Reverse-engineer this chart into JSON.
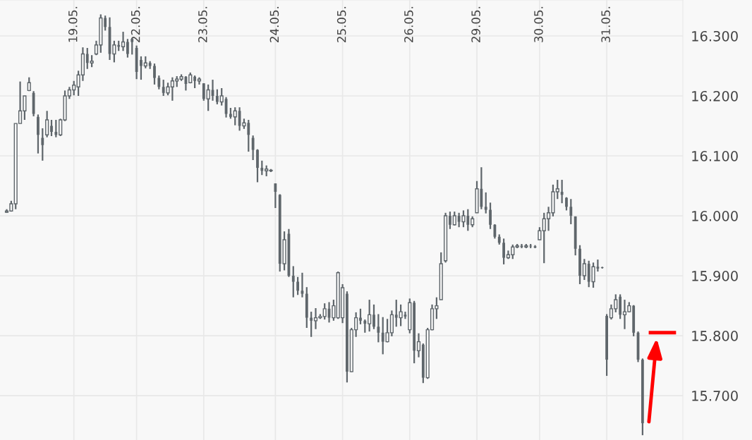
{
  "chart_data": {
    "type": "candlestick",
    "categories": [
      null,
      null,
      null,
      null,
      null,
      null,
      null,
      null,
      null,
      null,
      null,
      null,
      null,
      null,
      null,
      "19.05.",
      null,
      null,
      null,
      null,
      null,
      null,
      null,
      null,
      null,
      null,
      null,
      null,
      null,
      "22.05.",
      null,
      null,
      null,
      null,
      null,
      null,
      null,
      null,
      null,
      null,
      null,
      null,
      null,
      null,
      "23.05.",
      null,
      null,
      null,
      null,
      null,
      null,
      null,
      null,
      null,
      null,
      null,
      null,
      null,
      null,
      null,
      "24.05.",
      null,
      null,
      null,
      null,
      null,
      null,
      null,
      null,
      null,
      null,
      null,
      null,
      null,
      null,
      "25.05.",
      null,
      null,
      null,
      null,
      null,
      null,
      null,
      null,
      null,
      null,
      null,
      null,
      null,
      null,
      "26.05.",
      null,
      null,
      null,
      null,
      null,
      null,
      null,
      null,
      null,
      null,
      null,
      null,
      null,
      null,
      "29.05.",
      null,
      null,
      null,
      null,
      null,
      null,
      null,
      null,
      null,
      null,
      null,
      null,
      null,
      "30.05.",
      null,
      null,
      null,
      null,
      null,
      null,
      null,
      null,
      null,
      null,
      null,
      null,
      null,
      null,
      "31.05.",
      null,
      null,
      null,
      null,
      null,
      null,
      null,
      null
    ],
    "ohlc": [
      [
        16.006,
        16.011,
        16.005,
        16.008
      ],
      [
        16.008,
        16.025,
        16.007,
        16.02
      ],
      [
        16.02,
        16.154,
        16.011,
        16.154
      ],
      [
        16.154,
        16.224,
        16.154,
        16.175
      ],
      [
        16.175,
        16.2,
        16.16,
        16.2
      ],
      [
        16.209,
        16.231,
        16.208,
        16.222
      ],
      [
        16.205,
        16.208,
        16.166,
        16.17
      ],
      [
        16.165,
        16.169,
        16.104,
        16.135
      ],
      [
        16.13,
        16.146,
        16.092,
        16.118
      ],
      [
        16.135,
        16.175,
        16.131,
        16.16
      ],
      [
        16.15,
        16.16,
        16.133,
        16.14
      ],
      [
        16.14,
        16.16,
        16.131,
        16.135
      ],
      [
        16.135,
        16.162,
        16.133,
        16.16
      ],
      [
        16.16,
        16.209,
        16.158,
        16.2
      ],
      [
        16.2,
        16.215,
        16.195,
        16.21
      ],
      [
        16.21,
        16.225,
        16.201,
        16.218
      ],
      [
        16.215,
        16.242,
        16.2,
        16.235
      ],
      [
        16.235,
        16.281,
        16.225,
        16.27
      ],
      [
        16.27,
        16.28,
        16.245,
        16.255
      ],
      [
        16.255,
        16.268,
        16.248,
        16.258
      ],
      [
        16.27,
        16.292,
        16.268,
        16.285
      ],
      [
        16.285,
        16.336,
        16.272,
        16.33
      ],
      [
        16.33,
        16.334,
        16.309,
        16.315
      ],
      [
        16.315,
        16.331,
        16.26,
        16.27
      ],
      [
        16.27,
        16.292,
        16.256,
        16.285
      ],
      [
        16.285,
        16.292,
        16.275,
        16.282
      ],
      [
        16.282,
        16.307,
        16.275,
        16.29
      ],
      [
        16.29,
        16.295,
        16.264,
        16.27
      ],
      [
        16.295,
        16.296,
        16.269,
        16.29
      ],
      [
        16.28,
        16.284,
        16.228,
        16.24
      ],
      [
        16.26,
        16.266,
        16.227,
        16.25
      ],
      [
        16.25,
        16.266,
        16.246,
        16.255
      ],
      [
        16.255,
        16.258,
        16.245,
        16.25
      ],
      [
        16.25,
        16.254,
        16.219,
        16.23
      ],
      [
        16.23,
        16.234,
        16.211,
        16.215
      ],
      [
        16.215,
        16.227,
        16.2,
        16.205
      ],
      [
        16.205,
        16.222,
        16.201,
        16.215
      ],
      [
        16.215,
        16.231,
        16.192,
        16.225
      ],
      [
        16.225,
        16.233,
        16.215,
        16.228
      ],
      [
        16.228,
        16.236,
        16.225,
        16.232
      ],
      [
        16.232,
        16.233,
        16.209,
        16.22
      ],
      [
        16.222,
        16.239,
        16.221,
        16.235
      ],
      [
        16.232,
        16.234,
        16.213,
        16.225
      ],
      [
        16.225,
        16.231,
        16.219,
        16.228
      ],
      [
        16.221,
        16.221,
        16.192,
        16.195
      ],
      [
        16.195,
        16.219,
        16.175,
        16.21
      ],
      [
        16.21,
        16.227,
        16.192,
        16.2
      ],
      [
        16.2,
        16.211,
        16.186,
        16.19
      ],
      [
        16.19,
        16.213,
        16.184,
        16.2
      ],
      [
        16.195,
        16.198,
        16.164,
        16.17
      ],
      [
        16.17,
        16.18,
        16.162,
        16.165
      ],
      [
        16.165,
        16.181,
        16.151,
        16.175
      ],
      [
        16.175,
        16.181,
        16.142,
        16.15
      ],
      [
        16.15,
        16.162,
        16.145,
        16.155
      ],
      [
        16.155,
        16.16,
        16.107,
        16.135
      ],
      [
        16.13,
        16.134,
        16.093,
        16.11
      ],
      [
        16.11,
        16.111,
        16.056,
        16.08
      ],
      [
        16.08,
        16.092,
        16.068,
        16.075
      ],
      [
        16.075,
        16.084,
        16.066,
        16.078
      ],
      [
        16.075,
        16.078,
        16.073,
        16.076
      ],
      [
        16.054,
        16.054,
        16.013,
        16.04
      ],
      [
        16.035,
        16.036,
        15.907,
        15.92
      ],
      [
        15.92,
        15.974,
        15.909,
        15.96
      ],
      [
        15.97,
        15.978,
        15.898,
        15.9
      ],
      [
        15.9,
        15.916,
        15.864,
        15.89
      ],
      [
        15.89,
        15.898,
        15.868,
        15.875
      ],
      [
        15.875,
        15.905,
        15.864,
        15.87
      ],
      [
        15.87,
        15.881,
        15.813,
        15.83
      ],
      [
        15.83,
        15.84,
        15.798,
        15.825
      ],
      [
        15.825,
        15.846,
        15.811,
        15.83
      ],
      [
        15.83,
        15.836,
        15.828,
        15.832
      ],
      [
        15.832,
        15.854,
        15.827,
        15.845
      ],
      [
        15.845,
        15.856,
        15.822,
        15.83
      ],
      [
        15.83,
        15.86,
        15.825,
        15.85
      ],
      [
        15.83,
        15.907,
        15.828,
        15.905
      ],
      [
        15.83,
        15.886,
        15.821,
        15.88
      ],
      [
        15.87,
        15.874,
        15.722,
        15.74
      ],
      [
        15.74,
        15.813,
        15.739,
        15.81
      ],
      [
        15.81,
        15.839,
        15.798,
        15.83
      ],
      [
        15.83,
        15.845,
        15.819,
        15.825
      ],
      [
        15.825,
        15.827,
        15.805,
        15.82
      ],
      [
        15.82,
        15.86,
        15.807,
        15.835
      ],
      [
        15.835,
        15.852,
        15.811,
        15.815
      ],
      [
        15.815,
        15.836,
        15.789,
        15.805
      ],
      [
        15.805,
        15.831,
        15.769,
        15.79
      ],
      [
        15.79,
        15.828,
        15.789,
        15.805
      ],
      [
        15.805,
        15.842,
        15.799,
        15.835
      ],
      [
        15.835,
        15.86,
        15.815,
        15.83
      ],
      [
        15.83,
        15.852,
        15.816,
        15.84
      ],
      [
        15.835,
        15.84,
        15.828,
        15.832
      ],
      [
        15.81,
        15.862,
        15.804,
        15.855
      ],
      [
        15.855,
        15.858,
        15.754,
        15.775
      ],
      [
        15.775,
        15.804,
        15.764,
        15.79
      ],
      [
        15.785,
        15.787,
        15.721,
        15.73
      ],
      [
        15.73,
        15.813,
        15.728,
        15.81
      ],
      [
        15.81,
        15.852,
        15.809,
        15.845
      ],
      [
        15.845,
        15.864,
        15.828,
        15.85
      ],
      [
        15.86,
        15.939,
        15.86,
        15.92
      ],
      [
        15.925,
        16.005,
        15.922,
        16.0
      ],
      [
        16.0,
        16.007,
        15.978,
        15.985
      ],
      [
        15.985,
        16.007,
        15.984,
        16.0
      ],
      [
        16.0,
        16.005,
        15.981,
        15.99
      ],
      [
        15.99,
        16.009,
        15.981,
        16.0
      ],
      [
        16.0,
        16.011,
        15.975,
        15.985
      ],
      [
        15.985,
        15.999,
        15.981,
        15.995
      ],
      [
        16.005,
        16.058,
        16.005,
        16.045
      ],
      [
        16.045,
        16.081,
        16.011,
        16.015
      ],
      [
        16.015,
        16.039,
        16.004,
        16.01
      ],
      [
        16.01,
        16.022,
        15.978,
        15.985
      ],
      [
        15.985,
        15.986,
        15.962,
        15.965
      ],
      [
        15.965,
        15.969,
        15.952,
        15.955
      ],
      [
        15.955,
        15.962,
        15.919,
        15.93
      ],
      [
        15.93,
        15.942,
        15.928,
        15.935
      ],
      [
        15.935,
        15.952,
        15.928,
        15.948
      ],
      [
        15.948,
        15.953,
        15.946,
        15.95
      ],
      [
        15.95,
        15.953,
        15.946,
        15.948
      ],
      [
        15.948,
        15.953,
        15.946,
        15.95
      ],
      [
        15.95,
        15.953,
        15.946,
        15.949
      ],
      [
        15.949,
        15.951,
        15.946,
        15.947
      ],
      [
        15.96,
        15.981,
        15.96,
        15.975
      ],
      [
        15.975,
        16.005,
        15.921,
        15.995
      ],
      [
        15.995,
        16.015,
        15.975,
        16.005
      ],
      [
        16.005,
        16.052,
        15.999,
        16.04
      ],
      [
        16.04,
        16.06,
        16.028,
        16.045
      ],
      [
        16.04,
        16.06,
        16.021,
        16.035
      ],
      [
        16.03,
        16.031,
        16.009,
        16.015
      ],
      [
        16.015,
        16.028,
        15.986,
        16.0
      ],
      [
        15.999,
        15.999,
        15.934,
        15.945
      ],
      [
        15.945,
        15.951,
        15.886,
        15.9
      ],
      [
        15.9,
        15.928,
        15.893,
        15.92
      ],
      [
        15.92,
        15.925,
        15.881,
        15.89
      ],
      [
        15.89,
        15.922,
        15.88,
        15.915
      ],
      [
        15.915,
        15.927,
        15.907,
        15.912
      ],
      [
        15.914,
        15.915,
        15.912,
        15.913
      ],
      [
        15.833,
        15.836,
        15.733,
        15.76
      ],
      [
        15.83,
        15.852,
        15.827,
        15.845
      ],
      [
        15.845,
        15.869,
        15.839,
        15.86
      ],
      [
        15.865,
        15.869,
        15.828,
        15.835
      ],
      [
        15.835,
        15.86,
        15.811,
        15.84
      ],
      [
        15.84,
        15.856,
        15.839,
        15.85
      ],
      [
        15.85,
        15.851,
        15.799,
        15.805
      ],
      [
        15.805,
        15.807,
        15.756,
        15.76
      ],
      [
        15.76,
        15.762,
        15.634,
        15.654
      ]
    ],
    "color": "#5f666b",
    "ylim": [
      15.626,
      16.36
    ],
    "yticks": [
      {
        "value": 15.7,
        "label": "15.700"
      },
      {
        "value": 15.8,
        "label": "15.800"
      },
      {
        "value": 15.9,
        "label": "15.900"
      },
      {
        "value": 16.0,
        "label": "16.000"
      },
      {
        "value": 16.1,
        "label": "16.100"
      },
      {
        "value": 16.2,
        "label": "16.200"
      },
      {
        "value": 16.3,
        "label": "16.300"
      }
    ],
    "grid": true
  }
}
